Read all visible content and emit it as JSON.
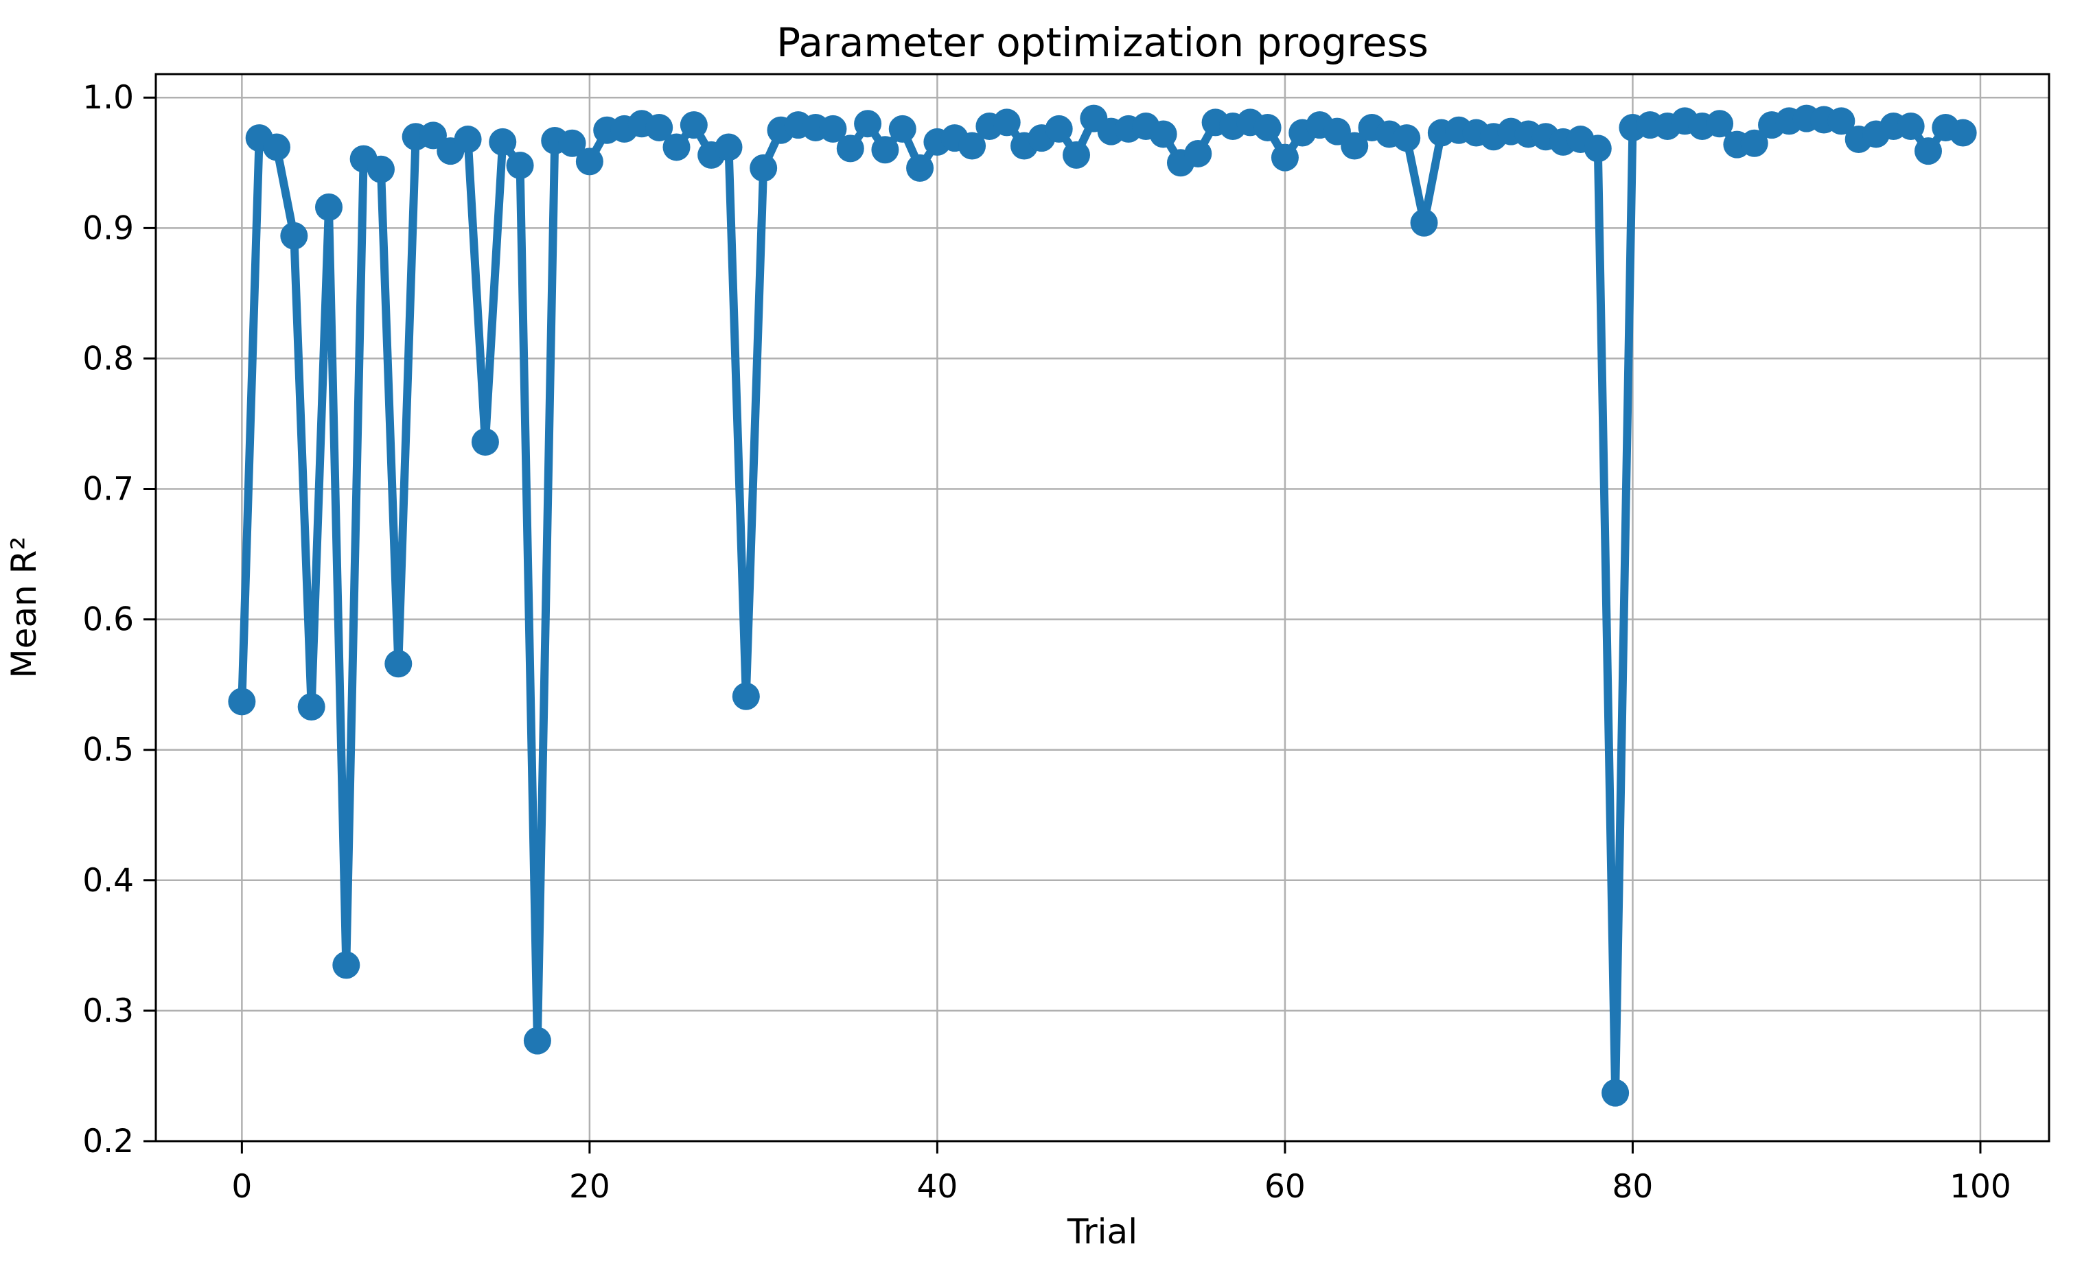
{
  "figure": {
    "background_color": "#ffffff",
    "grid_color": "#b0b0b0",
    "spine_color": "#000000",
    "text_color": "#000000"
  },
  "chart_data": {
    "type": "line",
    "title": "Parameter optimization progress",
    "xlabel": "Trial",
    "ylabel": "Mean R²",
    "legend": null,
    "grid": true,
    "line_color": "#1f77b4",
    "marker": "circle",
    "marker_color": "#1f77b4",
    "xlim": [
      -4.95,
      103.95
    ],
    "ylim": [
      0.2,
      1.018
    ],
    "xticks": [
      0,
      20,
      40,
      60,
      80,
      100
    ],
    "yticks": [
      1.0,
      0.9,
      0.8,
      0.7,
      0.6,
      0.5,
      0.4,
      0.3,
      0.2
    ],
    "x": [
      0,
      1,
      2,
      3,
      4,
      5,
      6,
      7,
      8,
      9,
      10,
      11,
      12,
      13,
      14,
      15,
      16,
      17,
      18,
      19,
      20,
      21,
      22,
      23,
      24,
      25,
      26,
      27,
      28,
      29,
      30,
      31,
      32,
      33,
      34,
      35,
      36,
      37,
      38,
      39,
      40,
      41,
      42,
      43,
      44,
      45,
      46,
      47,
      48,
      49,
      50,
      51,
      52,
      53,
      54,
      55,
      56,
      57,
      58,
      59,
      60,
      61,
      62,
      63,
      64,
      65,
      66,
      67,
      68,
      69,
      70,
      71,
      72,
      73,
      74,
      75,
      76,
      77,
      78,
      79,
      80,
      81,
      82,
      83,
      84,
      85,
      86,
      87,
      88,
      89,
      90,
      91,
      92,
      93,
      94,
      95,
      96,
      97,
      98,
      99
    ],
    "y": [
      0.537,
      0.969,
      0.962,
      0.894,
      0.533,
      0.916,
      0.335,
      0.953,
      0.945,
      0.566,
      0.97,
      0.971,
      0.959,
      0.968,
      0.736,
      0.966,
      0.948,
      0.277,
      0.967,
      0.965,
      0.951,
      0.975,
      0.976,
      0.98,
      0.977,
      0.962,
      0.979,
      0.956,
      0.962,
      0.541,
      0.946,
      0.975,
      0.979,
      0.977,
      0.976,
      0.961,
      0.98,
      0.96,
      0.976,
      0.946,
      0.966,
      0.969,
      0.963,
      0.978,
      0.981,
      0.963,
      0.969,
      0.976,
      0.956,
      0.984,
      0.974,
      0.976,
      0.978,
      0.972,
      0.95,
      0.957,
      0.981,
      0.978,
      0.981,
      0.977,
      0.954,
      0.973,
      0.979,
      0.974,
      0.963,
      0.977,
      0.972,
      0.969,
      0.904,
      0.973,
      0.975,
      0.973,
      0.97,
      0.974,
      0.972,
      0.97,
      0.966,
      0.968,
      0.961,
      0.237,
      0.977,
      0.979,
      0.978,
      0.982,
      0.978,
      0.98,
      0.964,
      0.965,
      0.979,
      0.982,
      0.984,
      0.983,
      0.982,
      0.968,
      0.972,
      0.978,
      0.978,
      0.959,
      0.977,
      0.973
    ]
  }
}
